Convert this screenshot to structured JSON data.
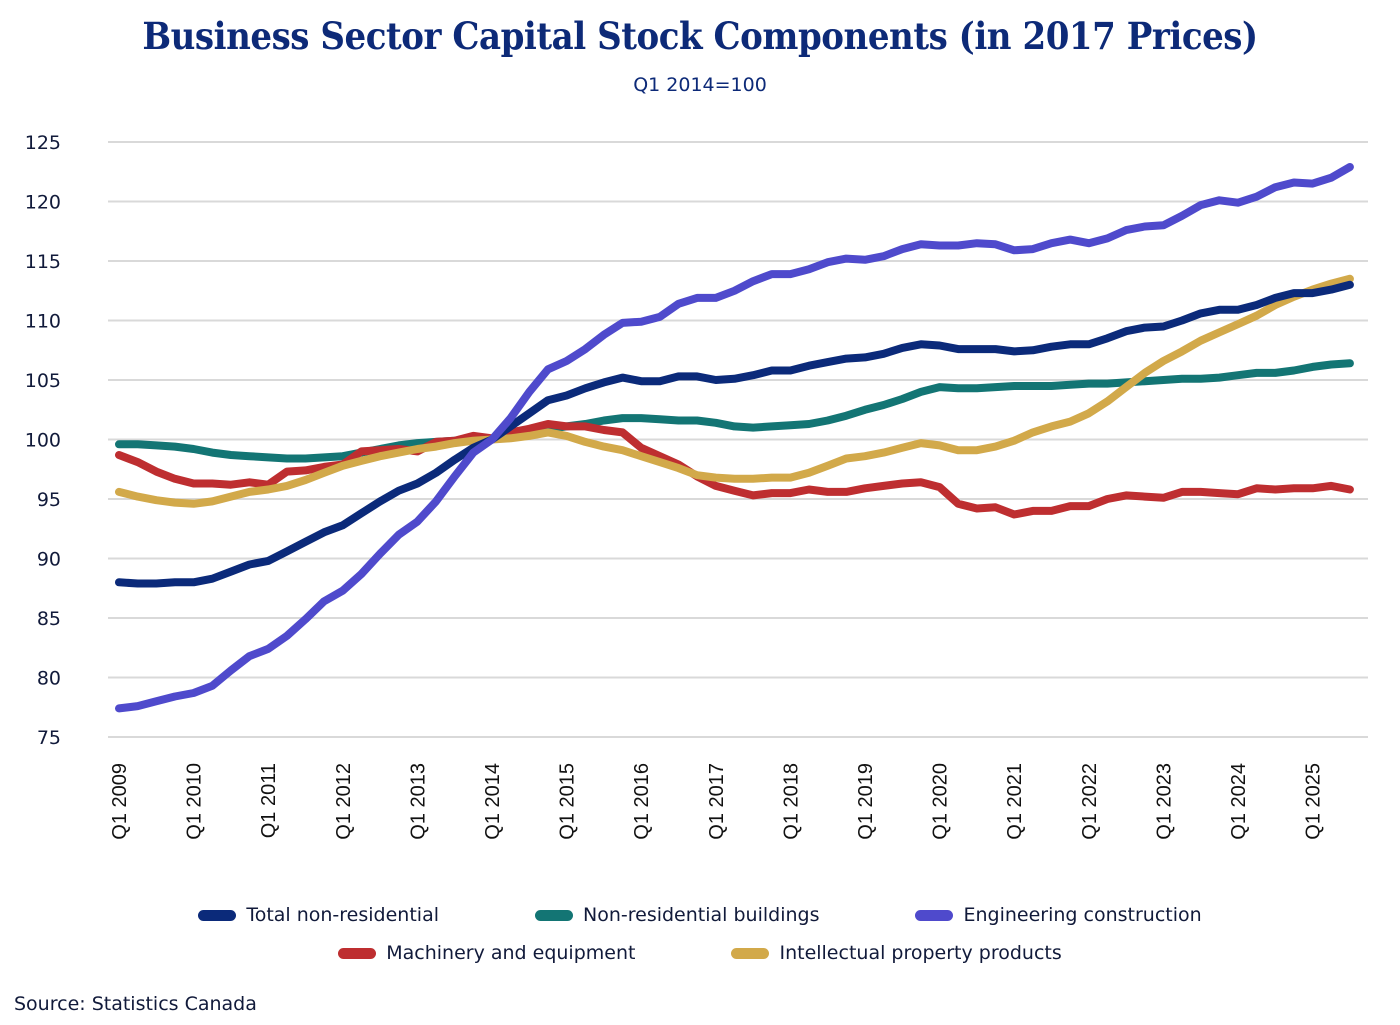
{
  "chart_data": {
    "type": "line",
    "title": "Business Sector Capital Stock Components (in 2017 Prices)",
    "subtitle": "Q1 2014=100",
    "xlabel": "",
    "ylabel": "",
    "ylim": [
      75,
      125
    ],
    "yticks": [
      125,
      120,
      115,
      110,
      105,
      100,
      95,
      90,
      85,
      80,
      75
    ],
    "xtick_labels": [
      "Q1 2009",
      "Q1 2010",
      "Q1 2011",
      "Q1 2012",
      "Q1 2013",
      "Q1 2014",
      "Q1 2015",
      "Q1 2016",
      "Q1 2017",
      "Q1 2018",
      "Q1 2019",
      "Q1 2020",
      "Q1 2021",
      "Q1 2022",
      "Q1 2023",
      "Q1 2024",
      "Q1 2025"
    ],
    "x_start": "Q1 2009",
    "x_end": "Q3 2025",
    "grid": true,
    "legend_position": "bottom",
    "series": [
      {
        "name": "Total non-residential",
        "color": "#0b2a7a",
        "values": [
          88.0,
          87.9,
          87.9,
          88.0,
          88.0,
          88.3,
          88.9,
          89.5,
          89.8,
          90.6,
          91.4,
          92.2,
          92.8,
          93.8,
          94.8,
          95.7,
          96.3,
          97.2,
          98.3,
          99.3,
          100.0,
          101.1,
          102.2,
          103.3,
          103.7,
          104.3,
          104.8,
          105.2,
          104.9,
          104.9,
          105.3,
          105.3,
          105.0,
          105.1,
          105.4,
          105.8,
          105.8,
          106.2,
          106.5,
          106.8,
          106.9,
          107.2,
          107.7,
          108.0,
          107.9,
          107.6,
          107.6,
          107.6,
          107.4,
          107.5,
          107.8,
          108.0,
          108.0,
          108.5,
          109.1,
          109.4,
          109.5,
          110.0,
          110.6,
          110.9,
          110.9,
          111.3,
          111.9,
          112.3,
          112.3,
          112.6,
          113.0
        ]
      },
      {
        "name": "Non-residential buildings",
        "color": "#137574",
        "values": [
          99.6,
          99.6,
          99.5,
          99.4,
          99.2,
          98.9,
          98.7,
          98.6,
          98.5,
          98.4,
          98.4,
          98.5,
          98.6,
          98.9,
          99.2,
          99.5,
          99.7,
          99.8,
          99.9,
          100.0,
          100.0,
          100.3,
          100.6,
          100.9,
          101.1,
          101.3,
          101.6,
          101.8,
          101.8,
          101.7,
          101.6,
          101.6,
          101.4,
          101.1,
          101.0,
          101.1,
          101.2,
          101.3,
          101.6,
          102.0,
          102.5,
          102.9,
          103.4,
          104.0,
          104.4,
          104.3,
          104.3,
          104.4,
          104.5,
          104.5,
          104.5,
          104.6,
          104.7,
          104.7,
          104.8,
          104.9,
          105.0,
          105.1,
          105.1,
          105.2,
          105.4,
          105.6,
          105.6,
          105.8,
          106.1,
          106.3,
          106.4
        ]
      },
      {
        "name": "Engineering construction",
        "color": "#4f4acc",
        "values": [
          77.4,
          77.6,
          78.0,
          78.4,
          78.7,
          79.3,
          80.6,
          81.8,
          82.4,
          83.5,
          84.9,
          86.4,
          87.3,
          88.7,
          90.4,
          92.0,
          93.1,
          94.8,
          96.9,
          98.9,
          100.0,
          101.8,
          104.0,
          105.9,
          106.6,
          107.6,
          108.8,
          109.8,
          109.9,
          110.3,
          111.4,
          111.9,
          111.9,
          112.5,
          113.3,
          113.9,
          113.9,
          114.3,
          114.9,
          115.2,
          115.1,
          115.4,
          116.0,
          116.4,
          116.3,
          116.3,
          116.5,
          116.4,
          115.9,
          116.0,
          116.5,
          116.8,
          116.5,
          116.9,
          117.6,
          117.9,
          118.0,
          118.8,
          119.7,
          120.1,
          119.9,
          120.4,
          121.2,
          121.6,
          121.5,
          122.0,
          122.9
        ]
      },
      {
        "name": "Machinery and equipment",
        "color": "#be2e30",
        "values": [
          98.7,
          98.1,
          97.3,
          96.7,
          96.3,
          96.3,
          96.2,
          96.4,
          96.2,
          97.3,
          97.4,
          97.7,
          97.9,
          99.0,
          99.1,
          99.2,
          99.0,
          99.8,
          99.9,
          100.3,
          100.1,
          100.6,
          100.9,
          101.3,
          101.1,
          101.1,
          100.8,
          100.6,
          99.3,
          98.6,
          97.9,
          96.9,
          96.1,
          95.7,
          95.3,
          95.5,
          95.5,
          95.8,
          95.6,
          95.6,
          95.9,
          96.1,
          96.3,
          96.4,
          96.0,
          94.6,
          94.2,
          94.3,
          93.7,
          94.0,
          94.0,
          94.4,
          94.4,
          95.0,
          95.3,
          95.2,
          95.1,
          95.6,
          95.6,
          95.5,
          95.4,
          95.9,
          95.8,
          95.9,
          95.9,
          96.1,
          95.8
        ]
      },
      {
        "name": "Intellectual property products",
        "color": "#d2a94a",
        "values": [
          95.6,
          95.2,
          94.9,
          94.7,
          94.6,
          94.8,
          95.2,
          95.6,
          95.8,
          96.1,
          96.6,
          97.2,
          97.8,
          98.2,
          98.6,
          98.9,
          99.2,
          99.4,
          99.7,
          99.9,
          100.0,
          100.1,
          100.3,
          100.6,
          100.3,
          99.8,
          99.4,
          99.1,
          98.6,
          98.1,
          97.6,
          97.0,
          96.8,
          96.7,
          96.7,
          96.8,
          96.8,
          97.2,
          97.8,
          98.4,
          98.6,
          98.9,
          99.3,
          99.7,
          99.5,
          99.1,
          99.1,
          99.4,
          99.9,
          100.6,
          101.1,
          101.5,
          102.2,
          103.2,
          104.4,
          105.6,
          106.6,
          107.4,
          108.3,
          109.0,
          109.7,
          110.4,
          111.3,
          112.0,
          112.6,
          113.1,
          113.5
        ]
      }
    ]
  },
  "source": "Source: Statistics Canada"
}
